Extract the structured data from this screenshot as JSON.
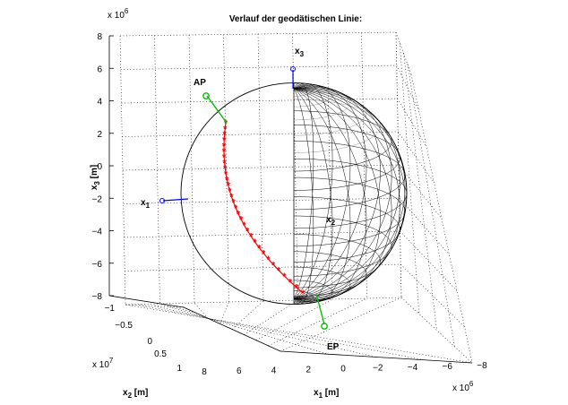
{
  "chart_data": {
    "type": "3d-surface-line",
    "title": "Verlauf der geodätischen Linie:",
    "x1": {
      "label": "x",
      "label_sub": "1",
      "unit": "[m]",
      "ticks": [
        "8",
        "6",
        "4",
        "2",
        "0",
        "−2",
        "−4",
        "−6",
        "−8"
      ],
      "multiplier_base": "x 10",
      "multiplier_exp": "6",
      "range": [
        -8000000,
        8000000
      ]
    },
    "x2": {
      "label": "x",
      "label_sub": "2",
      "unit": "[m]",
      "ticks": [
        "−1",
        "−0.5",
        "0",
        "0.5",
        "1"
      ],
      "multiplier_base": "x 10",
      "multiplier_exp": "7",
      "range": [
        -10000000,
        10000000
      ]
    },
    "x3": {
      "label": "x",
      "label_sub": "3",
      "unit": "[m]",
      "ticks": [
        "8",
        "6",
        "4",
        "2",
        "0",
        "−2",
        "−4",
        "−6",
        "−8"
      ],
      "multiplier_base": "x 10",
      "multiplier_exp": "6",
      "range": [
        -8000000,
        8000000
      ]
    },
    "grid": true,
    "surface": "Ellipsoid",
    "annotations": {
      "start": "AP",
      "end": "EP",
      "axis1": "x",
      "axis1_sub": "1",
      "axis2": "x",
      "axis2_sub": "2",
      "axis3": "x",
      "axis3_sub": "3"
    },
    "geodesic": {
      "color": "#ff0000",
      "marker": "*",
      "points": 30
    },
    "colors": {
      "geodesic": "#ff0000",
      "endpoints": "#00c000",
      "axes_markers": "#0000ff",
      "mesh": "#000000"
    }
  }
}
